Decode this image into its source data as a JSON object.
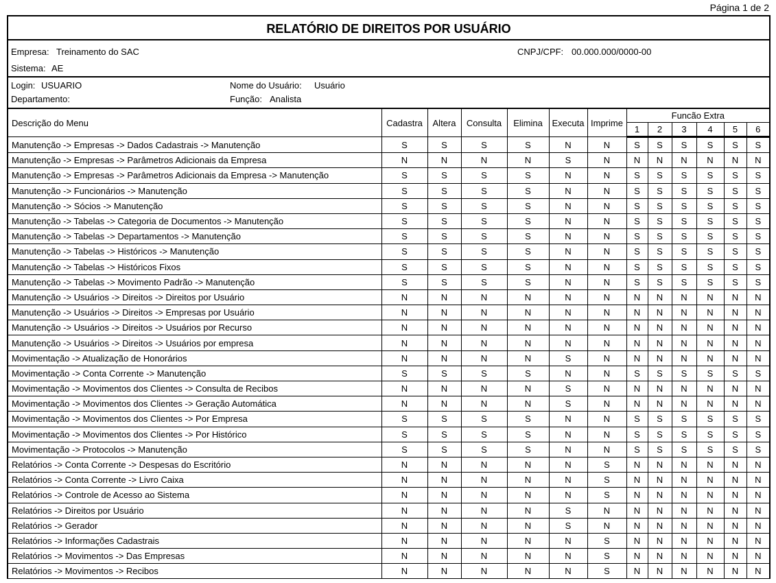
{
  "page_label": "Página 1 de 2",
  "title": "RELATÓRIO DE DIREITOS POR USUÁRIO",
  "info": {
    "empresa_label": "Empresa:",
    "empresa": "Treinamento do SAC",
    "cnpj_label": "CNPJ/CPF:",
    "cnpj": "00.000.000/0000-00",
    "sistema_label": "Sistema:",
    "sistema": "AE",
    "login_label": "Login:",
    "login": "USUARIO",
    "nome_label": "Nome do Usuário:",
    "nome": "Usuário",
    "departamento_label": "Departamento:",
    "departamento": "",
    "funcao_label": "Função:",
    "funcao": "Analista"
  },
  "table": {
    "desc_header": "Descrição do Menu",
    "columns": [
      "Cadastra",
      "Altera",
      "Consulta",
      "Elimina",
      "Executa",
      "Imprime"
    ],
    "extra_header": "Funcão Extra",
    "extra_columns": [
      "1",
      "2",
      "3",
      "4",
      "5",
      "6"
    ],
    "rows": [
      {
        "menu": "Manutenção -> Empresas -> Dados Cadastrais -> Manutenção",
        "v": [
          "S",
          "S",
          "S",
          "S",
          "N",
          "N",
          "S",
          "S",
          "S",
          "S",
          "S",
          "S"
        ]
      },
      {
        "menu": "Manutenção -> Empresas -> Parâmetros Adicionais da Empresa",
        "v": [
          "N",
          "N",
          "N",
          "N",
          "S",
          "N",
          "N",
          "N",
          "N",
          "N",
          "N",
          "N"
        ]
      },
      {
        "menu": "Manutenção -> Empresas -> Parâmetros Adicionais da Empresa -> Manutenção",
        "v": [
          "S",
          "S",
          "S",
          "S",
          "N",
          "N",
          "S",
          "S",
          "S",
          "S",
          "S",
          "S"
        ]
      },
      {
        "menu": "Manutenção -> Funcionários -> Manutenção",
        "v": [
          "S",
          "S",
          "S",
          "S",
          "N",
          "N",
          "S",
          "S",
          "S",
          "S",
          "S",
          "S"
        ]
      },
      {
        "menu": "Manutenção -> Sócios -> Manutenção",
        "v": [
          "S",
          "S",
          "S",
          "S",
          "N",
          "N",
          "S",
          "S",
          "S",
          "S",
          "S",
          "S"
        ]
      },
      {
        "menu": "Manutenção -> Tabelas -> Categoria de Documentos -> Manutenção",
        "v": [
          "S",
          "S",
          "S",
          "S",
          "N",
          "N",
          "S",
          "S",
          "S",
          "S",
          "S",
          "S"
        ]
      },
      {
        "menu": "Manutenção -> Tabelas -> Departamentos -> Manutenção",
        "v": [
          "S",
          "S",
          "S",
          "S",
          "N",
          "N",
          "S",
          "S",
          "S",
          "S",
          "S",
          "S"
        ]
      },
      {
        "menu": "Manutenção -> Tabelas -> Históricos -> Manutenção",
        "v": [
          "S",
          "S",
          "S",
          "S",
          "N",
          "N",
          "S",
          "S",
          "S",
          "S",
          "S",
          "S"
        ]
      },
      {
        "menu": "Manutenção -> Tabelas -> Históricos Fixos",
        "v": [
          "S",
          "S",
          "S",
          "S",
          "N",
          "N",
          "S",
          "S",
          "S",
          "S",
          "S",
          "S"
        ]
      },
      {
        "menu": "Manutenção -> Tabelas -> Movimento Padrão -> Manutenção",
        "v": [
          "S",
          "S",
          "S",
          "S",
          "N",
          "N",
          "S",
          "S",
          "S",
          "S",
          "S",
          "S"
        ]
      },
      {
        "menu": "Manutenção -> Usuários -> Direitos -> Direitos por Usuário",
        "v": [
          "N",
          "N",
          "N",
          "N",
          "N",
          "N",
          "N",
          "N",
          "N",
          "N",
          "N",
          "N"
        ]
      },
      {
        "menu": "Manutenção -> Usuários -> Direitos -> Empresas por Usuário",
        "v": [
          "N",
          "N",
          "N",
          "N",
          "N",
          "N",
          "N",
          "N",
          "N",
          "N",
          "N",
          "N"
        ]
      },
      {
        "menu": "Manutenção -> Usuários -> Direitos -> Usuários por Recurso",
        "v": [
          "N",
          "N",
          "N",
          "N",
          "N",
          "N",
          "N",
          "N",
          "N",
          "N",
          "N",
          "N"
        ]
      },
      {
        "menu": "Manutenção -> Usuários -> Direitos -> Usuários por empresa",
        "v": [
          "N",
          "N",
          "N",
          "N",
          "N",
          "N",
          "N",
          "N",
          "N",
          "N",
          "N",
          "N"
        ]
      },
      {
        "menu": "Movimentação -> Atualização de Honorários",
        "v": [
          "N",
          "N",
          "N",
          "N",
          "S",
          "N",
          "N",
          "N",
          "N",
          "N",
          "N",
          "N"
        ]
      },
      {
        "menu": "Movimentação -> Conta Corrente -> Manutenção",
        "v": [
          "S",
          "S",
          "S",
          "S",
          "N",
          "N",
          "S",
          "S",
          "S",
          "S",
          "S",
          "S"
        ]
      },
      {
        "menu": "Movimentação -> Movimentos dos Clientes -> Consulta de Recibos",
        "v": [
          "N",
          "N",
          "N",
          "N",
          "S",
          "N",
          "N",
          "N",
          "N",
          "N",
          "N",
          "N"
        ]
      },
      {
        "menu": "Movimentação -> Movimentos dos Clientes -> Geração Automática",
        "v": [
          "N",
          "N",
          "N",
          "N",
          "S",
          "N",
          "N",
          "N",
          "N",
          "N",
          "N",
          "N"
        ]
      },
      {
        "menu": "Movimentação -> Movimentos dos Clientes -> Por Empresa",
        "v": [
          "S",
          "S",
          "S",
          "S",
          "N",
          "N",
          "S",
          "S",
          "S",
          "S",
          "S",
          "S"
        ]
      },
      {
        "menu": "Movimentação -> Movimentos dos Clientes -> Por Histórico",
        "v": [
          "S",
          "S",
          "S",
          "S",
          "N",
          "N",
          "S",
          "S",
          "S",
          "S",
          "S",
          "S"
        ]
      },
      {
        "menu": "Movimentação -> Protocolos -> Manutenção",
        "v": [
          "S",
          "S",
          "S",
          "S",
          "N",
          "N",
          "S",
          "S",
          "S",
          "S",
          "S",
          "S"
        ]
      },
      {
        "menu": "Relatórios -> Conta Corrente -> Despesas do Escritório",
        "v": [
          "N",
          "N",
          "N",
          "N",
          "N",
          "S",
          "N",
          "N",
          "N",
          "N",
          "N",
          "N"
        ]
      },
      {
        "menu": "Relatórios -> Conta Corrente -> Livro Caixa",
        "v": [
          "N",
          "N",
          "N",
          "N",
          "N",
          "S",
          "N",
          "N",
          "N",
          "N",
          "N",
          "N"
        ]
      },
      {
        "menu": "Relatórios -> Controle de Acesso ao Sistema",
        "v": [
          "N",
          "N",
          "N",
          "N",
          "N",
          "S",
          "N",
          "N",
          "N",
          "N",
          "N",
          "N"
        ]
      },
      {
        "menu": "Relatórios -> Direitos por Usuário",
        "v": [
          "N",
          "N",
          "N",
          "N",
          "S",
          "N",
          "N",
          "N",
          "N",
          "N",
          "N",
          "N"
        ]
      },
      {
        "menu": "Relatórios -> Gerador",
        "v": [
          "N",
          "N",
          "N",
          "N",
          "S",
          "N",
          "N",
          "N",
          "N",
          "N",
          "N",
          "N"
        ]
      },
      {
        "menu": "Relatórios -> Informações Cadastrais",
        "v": [
          "N",
          "N",
          "N",
          "N",
          "N",
          "S",
          "N",
          "N",
          "N",
          "N",
          "N",
          "N"
        ]
      },
      {
        "menu": "Relatórios -> Movimentos -> Das Empresas",
        "v": [
          "N",
          "N",
          "N",
          "N",
          "N",
          "S",
          "N",
          "N",
          "N",
          "N",
          "N",
          "N"
        ]
      },
      {
        "menu": "Relatórios -> Movimentos -> Recibos",
        "v": [
          "N",
          "N",
          "N",
          "N",
          "N",
          "S",
          "N",
          "N",
          "N",
          "N",
          "N",
          "N"
        ]
      }
    ]
  }
}
